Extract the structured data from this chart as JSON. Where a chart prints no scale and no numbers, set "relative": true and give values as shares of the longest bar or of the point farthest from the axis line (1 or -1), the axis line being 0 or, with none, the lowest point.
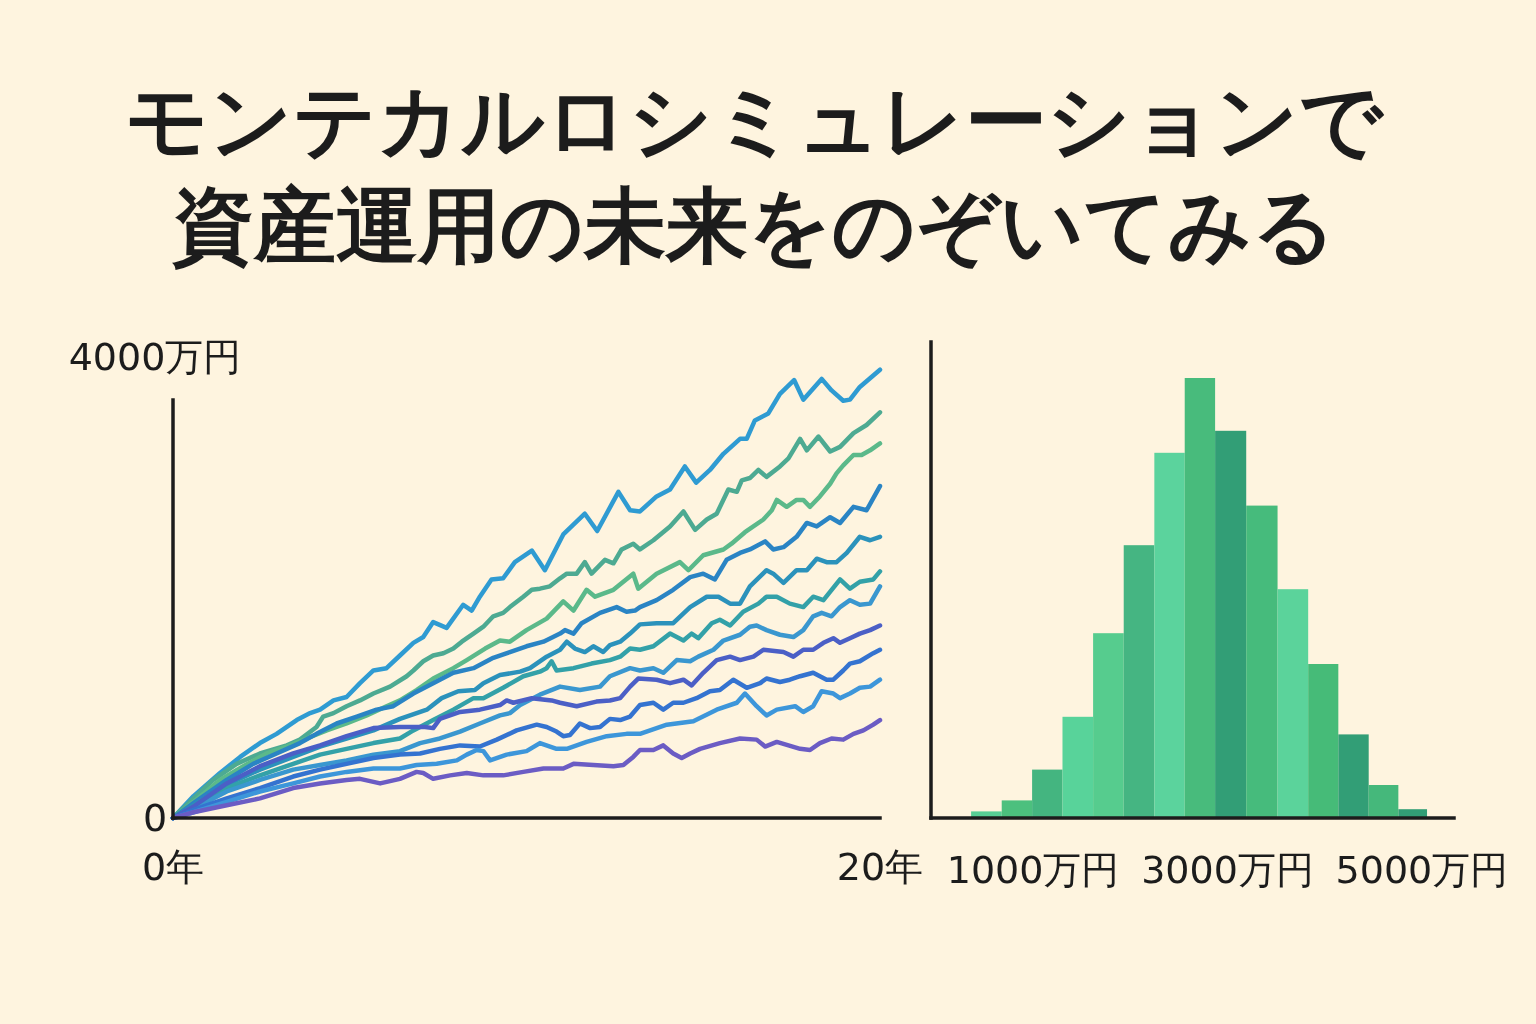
{
  "chart_data": [
    {
      "type": "line",
      "title": "モンテカルロシミュレーションで資産運用の未来をのぞいてみる",
      "xlim": [
        0,
        20
      ],
      "xticks": [
        {
          "value": 0,
          "label": "0年"
        },
        {
          "value": 20,
          "label": "20年"
        }
      ],
      "ylim": [
        0,
        4000
      ],
      "yticks": [
        0,
        {
          "value": 4000,
          "label": "4000万円"
        }
      ],
      "series": [
        {
          "color": "#2f9bd2",
          "x": [
            0,
            0.58,
            1.33,
            1.9,
            2.46,
            2.93,
            3.5,
            3.88,
            4.16,
            4.54,
            4.91,
            5.29,
            5.67,
            6.04,
            6.42,
            6.8,
            7.08,
            7.36,
            7.74,
            8.21,
            8.45,
            8.68,
            9.01,
            9.34,
            9.67,
            10.15,
            10.52,
            11.04,
            11.65,
            12,
            12.6,
            12.93,
            13.21,
            13.68,
            14.06,
            14.48,
            14.8,
            15.19,
            15.57,
            16.04,
            16.23,
            16.46,
            16.84,
            17.17,
            17.57,
            17.83,
            18.35,
            18.63,
            18.96,
            19.15,
            19.43,
            20
          ],
          "values": [
            0,
            190,
            390,
            530,
            650,
            730,
            850,
            910,
            940,
            1020,
            1050,
            1170,
            1280,
            1300,
            1410,
            1520,
            1570,
            1700,
            1650,
            1850,
            1800,
            1920,
            2070,
            2080,
            2220,
            2320,
            2150,
            2460,
            2640,
            2490,
            2830,
            2670,
            2660,
            2790,
            2850,
            3050,
            2910,
            3020,
            3160,
            3290,
            3290,
            3450,
            3510,
            3680,
            3800,
            3630,
            3810,
            3710,
            3620,
            3630,
            3740,
            3890
          ]
        },
        {
          "color": "#4daa92",
          "x": [
            0,
            0.58,
            1.14,
            1.8,
            2.46,
            3.22,
            3.59,
            4.06,
            4.25,
            4.54,
            4.91,
            5.29,
            5.67,
            6.14,
            6.61,
            6.8,
            7.08,
            7.36,
            7.65,
            7.93,
            8.17,
            8.5,
            8.78,
            9.06,
            9.34,
            9.53,
            9.91,
            10.15,
            10.38,
            10.66,
            10.95,
            11.14,
            11.42,
            11.65,
            11.84,
            12.22,
            12.46,
            12.69,
            13.02,
            13.21,
            13.59,
            14.06,
            14.44,
            14.77,
            15.1,
            15.38,
            15.71,
            15.95,
            16.09,
            16.32,
            16.56,
            16.79,
            17.17,
            17.41,
            17.74,
            17.93,
            18.26,
            18.59,
            18.87,
            19.25,
            19.62,
            20
          ],
          "values": [
            0,
            170,
            330,
            470,
            560,
            630,
            680,
            790,
            880,
            910,
            970,
            1020,
            1080,
            1140,
            1230,
            1280,
            1360,
            1410,
            1430,
            1470,
            1530,
            1600,
            1660,
            1750,
            1780,
            1830,
            1920,
            1980,
            1990,
            2010,
            2080,
            2120,
            2120,
            2220,
            2120,
            2240,
            2210,
            2330,
            2380,
            2330,
            2410,
            2530,
            2660,
            2500,
            2590,
            2640,
            2850,
            2830,
            2930,
            2950,
            3020,
            2960,
            3050,
            3120,
            3290,
            3190,
            3310,
            3180,
            3220,
            3340,
            3410,
            3520
          ]
        },
        {
          "color": "#5bb98a",
          "x": [
            0,
            0.58,
            1.33,
            1.99,
            2.65,
            3.22,
            3.78,
            4.35,
            4.91,
            5.48,
            6.04,
            6.42,
            6.89,
            7.36,
            7.93,
            8.31,
            8.83,
            9.25,
            9.53,
            10.0,
            10.57,
            11.04,
            11.33,
            11.7,
            11.94,
            12.46,
            13.02,
            13.16,
            13.68,
            14.34,
            14.58,
            15.0,
            15.57,
            15.8,
            16.18,
            16.7,
            16.94,
            17.08,
            17.36,
            17.64,
            17.83,
            18.02,
            18.3,
            18.59,
            18.77,
            18.96,
            19.25,
            19.48,
            19.72,
            20
          ],
          "values": [
            0,
            140,
            330,
            450,
            560,
            620,
            690,
            760,
            820,
            890,
            970,
            1020,
            1110,
            1210,
            1300,
            1370,
            1470,
            1540,
            1530,
            1630,
            1730,
            1880,
            1800,
            1980,
            1920,
            1980,
            2120,
            1990,
            2120,
            2220,
            2150,
            2280,
            2330,
            2380,
            2480,
            2590,
            2670,
            2760,
            2700,
            2760,
            2760,
            2700,
            2790,
            2900,
            2990,
            3060,
            3150,
            3150,
            3190,
            3250
          ]
        },
        {
          "color": "#2a84c4",
          "x": [
            0,
            0.58,
            1.52,
            2.27,
            2.93,
            3.59,
            4.06,
            4.63,
            5.2,
            5.76,
            6.23,
            6.8,
            7.36,
            7.93,
            8.5,
            9.06,
            9.53,
            10.0,
            10.48,
            10.95,
            11.09,
            11.33,
            11.56,
            12.08,
            12.55,
            12.83,
            13.07,
            13.21,
            13.68,
            14.15,
            14.63,
            15.0,
            15.33,
            15.66,
            16.04,
            16.32,
            16.75,
            16.98,
            17.27,
            17.64,
            17.93,
            18.21,
            18.59,
            18.87,
            19.25,
            19.62,
            20
          ],
          "values": [
            0,
            130,
            330,
            470,
            560,
            650,
            730,
            820,
            880,
            940,
            970,
            1080,
            1170,
            1260,
            1300,
            1390,
            1440,
            1490,
            1530,
            1600,
            1630,
            1600,
            1690,
            1780,
            1830,
            1790,
            1800,
            1830,
            1890,
            1980,
            2090,
            2120,
            2070,
            2240,
            2300,
            2330,
            2400,
            2330,
            2350,
            2440,
            2560,
            2530,
            2610,
            2560,
            2700,
            2670,
            2880
          ]
        },
        {
          "color": "#2b92bb",
          "x": [
            0,
            0.58,
            1.52,
            2.46,
            3.4,
            4.16,
            4.91,
            5.67,
            6.42,
            7.18,
            7.6,
            8.07,
            8.54,
            8.78,
            9.25,
            9.82,
            10.1,
            10.57,
            10.95,
            11.14,
            11.37,
            11.65,
            11.89,
            12.17,
            12.36,
            12.65,
            12.93,
            13.21,
            13.68,
            14.15,
            14.63,
            15.1,
            15.43,
            15.76,
            16.04,
            16.32,
            16.79,
            16.98,
            17.27,
            17.64,
            17.93,
            18.21,
            18.49,
            18.77,
            19.06,
            19.43,
            19.72,
            20
          ],
          "values": [
            0,
            110,
            290,
            420,
            530,
            620,
            690,
            760,
            860,
            940,
            1040,
            1100,
            1110,
            1170,
            1240,
            1270,
            1300,
            1400,
            1460,
            1530,
            1470,
            1440,
            1490,
            1440,
            1500,
            1530,
            1600,
            1680,
            1690,
            1690,
            1830,
            1920,
            1920,
            1860,
            1860,
            2010,
            2150,
            2120,
            2040,
            2150,
            2150,
            2250,
            2220,
            2220,
            2300,
            2440,
            2410,
            2440
          ]
        },
        {
          "color": "#33a1a8",
          "x": [
            0,
            0.58,
            1.52,
            2.46,
            3.4,
            4.16,
            4.91,
            5.67,
            6.42,
            6.8,
            7.36,
            7.93,
            8.5,
            8.78,
            9.34,
            9.91,
            10.38,
            10.57,
            10.71,
            10.85,
            11.33,
            11.84,
            12.36,
            12.65,
            12.93,
            13.21,
            13.59,
            14.06,
            14.44,
            14.67,
            14.86,
            15.24,
            15.47,
            15.76,
            16.13,
            16.56,
            16.79,
            17.08,
            17.45,
            17.83,
            18.11,
            18.4,
            18.87,
            19.15,
            19.43,
            19.81,
            20
          ],
          "values": [
            0,
            100,
            260,
            370,
            470,
            550,
            600,
            650,
            690,
            760,
            850,
            940,
            1040,
            1040,
            1130,
            1230,
            1270,
            1300,
            1360,
            1280,
            1300,
            1340,
            1370,
            1400,
            1470,
            1460,
            1490,
            1600,
            1540,
            1600,
            1560,
            1690,
            1720,
            1670,
            1790,
            1860,
            1920,
            1920,
            1860,
            1830,
            1920,
            1890,
            2070,
            1990,
            2050,
            2070,
            2140
          ]
        },
        {
          "color": "#3a97cf",
          "x": [
            0,
            0.58,
            1.52,
            2.46,
            3.4,
            4.16,
            4.91,
            5.67,
            6.42,
            6.99,
            7.55,
            8.12,
            8.68,
            9.25,
            9.53,
            9.82,
            10.38,
            10.95,
            11.51,
            12.08,
            12.36,
            12.93,
            13.21,
            13.59,
            13.87,
            14.25,
            14.63,
            14.86,
            15.29,
            15.57,
            16.04,
            16.32,
            16.51,
            16.79,
            17.17,
            17.55,
            17.83,
            18.11,
            18.35,
            18.63,
            18.87,
            19.15,
            19.43,
            19.72,
            20
          ],
          "values": [
            0,
            80,
            230,
            330,
            420,
            460,
            500,
            550,
            580,
            650,
            690,
            750,
            820,
            890,
            910,
            980,
            1070,
            1140,
            1110,
            1140,
            1230,
            1300,
            1280,
            1300,
            1260,
            1370,
            1360,
            1400,
            1460,
            1540,
            1590,
            1660,
            1670,
            1630,
            1590,
            1570,
            1630,
            1750,
            1780,
            1750,
            1830,
            1890,
            1850,
            1860,
            2010
          ]
        },
        {
          "color": "#4b5fc6",
          "x": [
            0,
            0.58,
            1.52,
            2.46,
            3.4,
            4.16,
            4.91,
            5.67,
            6.42,
            7.13,
            7.36,
            7.55,
            8.12,
            8.68,
            9.25,
            9.44,
            9.63,
            10.15,
            10.71,
            10.95,
            11.42,
            11.98,
            12.36,
            12.65,
            12.93,
            13.16,
            13.68,
            14.06,
            14.44,
            14.67,
            15.0,
            15.38,
            15.76,
            16.04,
            16.42,
            16.7,
            17.27,
            17.55,
            17.83,
            18.11,
            18.4,
            18.68,
            18.87,
            19.15,
            19.43,
            19.72,
            20
          ],
          "values": [
            0,
            100,
            300,
            450,
            560,
            630,
            710,
            780,
            790,
            790,
            780,
            860,
            920,
            940,
            980,
            1020,
            1000,
            1040,
            1020,
            1000,
            970,
            1010,
            1020,
            1040,
            1140,
            1210,
            1200,
            1170,
            1200,
            1150,
            1260,
            1370,
            1400,
            1370,
            1400,
            1460,
            1440,
            1400,
            1460,
            1460,
            1520,
            1560,
            1520,
            1560,
            1600,
            1630,
            1670
          ]
        },
        {
          "color": "#3473d0",
          "x": [
            0,
            0.58,
            1.52,
            2.46,
            3.4,
            4.16,
            4.91,
            5.67,
            6.42,
            6.99,
            7.55,
            8.12,
            8.68,
            9.16,
            9.72,
            10.29,
            10.57,
            10.85,
            11.04,
            11.23,
            11.51,
            11.8,
            12.08,
            12.36,
            12.65,
            12.93,
            13.21,
            13.59,
            13.87,
            14.15,
            14.44,
            14.81,
            15.19,
            15.47,
            15.85,
            16.23,
            16.61,
            16.79,
            17.17,
            17.45,
            17.74,
            18.11,
            18.49,
            18.68,
            18.96,
            19.15,
            19.43,
            19.81,
            20
          ],
          "values": [
            0,
            70,
            170,
            260,
            360,
            420,
            470,
            520,
            550,
            560,
            600,
            630,
            620,
            680,
            760,
            810,
            790,
            750,
            710,
            720,
            820,
            780,
            790,
            860,
            850,
            880,
            980,
            1000,
            940,
            1000,
            1000,
            1040,
            1100,
            1110,
            1200,
            1130,
            1170,
            1210,
            1180,
            1200,
            1230,
            1260,
            1200,
            1200,
            1280,
            1340,
            1360,
            1430,
            1460
          ]
        },
        {
          "color": "#3d96da",
          "x": [
            0,
            0.58,
            1.52,
            2.46,
            3.4,
            4.16,
            4.91,
            5.67,
            6.42,
            6.89,
            7.46,
            8.03,
            8.31,
            8.59,
            8.78,
            8.97,
            9.44,
            10.0,
            10.38,
            10.85,
            11.14,
            11.7,
            12.27,
            12.83,
            13.21,
            13.97,
            14.72,
            15.38,
            15.95,
            16.18,
            16.51,
            16.79,
            17.08,
            17.6,
            17.83,
            18.11,
            18.35,
            18.68,
            18.87,
            19.15,
            19.43,
            19.72,
            20
          ],
          "values": [
            0,
            50,
            140,
            230,
            300,
            360,
            400,
            430,
            430,
            460,
            470,
            500,
            550,
            590,
            580,
            500,
            550,
            580,
            650,
            600,
            600,
            660,
            710,
            730,
            730,
            810,
            840,
            940,
            1000,
            1080,
            970,
            890,
            940,
            970,
            920,
            970,
            1100,
            1080,
            1040,
            1080,
            1130,
            1140,
            1200
          ]
        },
        {
          "color": "#6b5cc4",
          "x": [
            0,
            0.58,
            1.52,
            2.46,
            3.4,
            4.16,
            4.91,
            5.29,
            5.86,
            6.42,
            6.89,
            7.08,
            7.36,
            7.84,
            8.31,
            8.78,
            9.34,
            9.91,
            10.48,
            11.04,
            11.33,
            11.89,
            12.46,
            12.74,
            13.02,
            13.21,
            13.59,
            13.87,
            14.15,
            14.39,
            14.63,
            14.91,
            15.47,
            16.04,
            16.51,
            16.75,
            17.08,
            17.74,
            18.02,
            18.3,
            18.63,
            18.96,
            19.25,
            19.53,
            19.81,
            20
          ],
          "values": [
            0,
            50,
            110,
            170,
            260,
            300,
            330,
            340,
            300,
            340,
            400,
            390,
            340,
            370,
            390,
            370,
            370,
            400,
            430,
            430,
            470,
            460,
            450,
            460,
            530,
            590,
            590,
            630,
            560,
            520,
            560,
            600,
            650,
            690,
            680,
            620,
            660,
            600,
            590,
            650,
            690,
            680,
            730,
            760,
            810,
            850
          ]
        }
      ]
    },
    {
      "type": "bar",
      "x": [
        520,
        835,
        1145,
        1460,
        1775,
        2090,
        2405,
        2715,
        3030,
        3355,
        3675,
        3985,
        4295,
        4610,
        4905
      ],
      "values": [
        0.015,
        0.04,
        0.11,
        0.23,
        0.42,
        0.62,
        0.83,
        1,
        0.88,
        0.71,
        0.52,
        0.35,
        0.19,
        0.075,
        0.02
      ],
      "colors": [
        "#57cf95",
        "#4cc07e",
        "#44b580",
        "#58d39a",
        "#56cc8e",
        "#45b582",
        "#5bd39d",
        "#48bb7c",
        "#329e76",
        "#46bb7c",
        "#5bd39b",
        "#46bb78",
        "#329e76",
        "#45b87b",
        "#329e76"
      ],
      "relative": true,
      "xlim": [
        -50,
        5330
      ],
      "xticks": [
        {
          "value": 1000,
          "label": "1000万円"
        },
        {
          "value": 3000,
          "label": "3000万円"
        },
        {
          "value": 5000,
          "label": "5000万円"
        }
      ]
    }
  ]
}
